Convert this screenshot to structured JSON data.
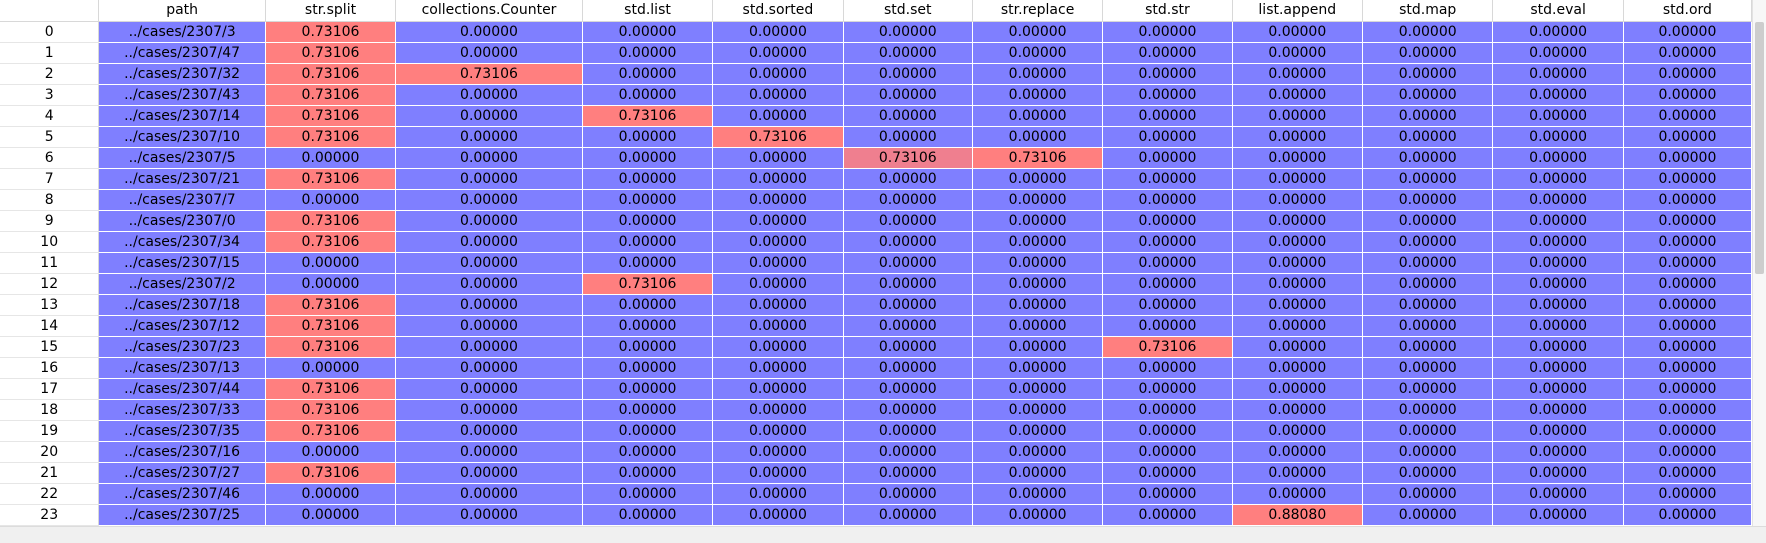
{
  "columns": [
    "",
    "path",
    "str.split",
    "collections.Counter",
    "std.list",
    "std.sorted",
    "std.set",
    "str.replace",
    "std.str",
    "list.append",
    "std.map",
    "std.eval",
    "std.ord"
  ],
  "rows": [
    {
      "index": "0",
      "path": "../cases/2307/3",
      "values": [
        "0.73106",
        "0.00000",
        "0.00000",
        "0.00000",
        "0.00000",
        "0.00000",
        "0.00000",
        "0.00000",
        "0.00000",
        "0.00000",
        "0.00000"
      ]
    },
    {
      "index": "1",
      "path": "../cases/2307/47",
      "values": [
        "0.73106",
        "0.00000",
        "0.00000",
        "0.00000",
        "0.00000",
        "0.00000",
        "0.00000",
        "0.00000",
        "0.00000",
        "0.00000",
        "0.00000"
      ]
    },
    {
      "index": "2",
      "path": "../cases/2307/32",
      "values": [
        "0.73106",
        "0.73106",
        "0.00000",
        "0.00000",
        "0.00000",
        "0.00000",
        "0.00000",
        "0.00000",
        "0.00000",
        "0.00000",
        "0.00000"
      ]
    },
    {
      "index": "3",
      "path": "../cases/2307/43",
      "values": [
        "0.73106",
        "0.00000",
        "0.00000",
        "0.00000",
        "0.00000",
        "0.00000",
        "0.00000",
        "0.00000",
        "0.00000",
        "0.00000",
        "0.00000"
      ]
    },
    {
      "index": "4",
      "path": "../cases/2307/14",
      "values": [
        "0.73106",
        "0.00000",
        "0.73106",
        "0.00000",
        "0.00000",
        "0.00000",
        "0.00000",
        "0.00000",
        "0.00000",
        "0.00000",
        "0.00000"
      ]
    },
    {
      "index": "5",
      "path": "../cases/2307/10",
      "values": [
        "0.73106",
        "0.00000",
        "0.00000",
        "0.73106",
        "0.00000",
        "0.00000",
        "0.00000",
        "0.00000",
        "0.00000",
        "0.00000",
        "0.00000"
      ]
    },
    {
      "index": "6",
      "path": "../cases/2307/5",
      "values": [
        "0.00000",
        "0.00000",
        "0.00000",
        "0.00000",
        "0.73106",
        "0.73106",
        "0.00000",
        "0.00000",
        "0.00000",
        "0.00000",
        "0.00000"
      ]
    },
    {
      "index": "7",
      "path": "../cases/2307/21",
      "values": [
        "0.73106",
        "0.00000",
        "0.00000",
        "0.00000",
        "0.00000",
        "0.00000",
        "0.00000",
        "0.00000",
        "0.00000",
        "0.00000",
        "0.00000"
      ]
    },
    {
      "index": "8",
      "path": "../cases/2307/7",
      "values": [
        "0.00000",
        "0.00000",
        "0.00000",
        "0.00000",
        "0.00000",
        "0.00000",
        "0.00000",
        "0.00000",
        "0.00000",
        "0.00000",
        "0.00000"
      ]
    },
    {
      "index": "9",
      "path": "../cases/2307/0",
      "values": [
        "0.73106",
        "0.00000",
        "0.00000",
        "0.00000",
        "0.00000",
        "0.00000",
        "0.00000",
        "0.00000",
        "0.00000",
        "0.00000",
        "0.00000"
      ]
    },
    {
      "index": "10",
      "path": "../cases/2307/34",
      "values": [
        "0.73106",
        "0.00000",
        "0.00000",
        "0.00000",
        "0.00000",
        "0.00000",
        "0.00000",
        "0.00000",
        "0.00000",
        "0.00000",
        "0.00000"
      ]
    },
    {
      "index": "11",
      "path": "../cases/2307/15",
      "values": [
        "0.00000",
        "0.00000",
        "0.00000",
        "0.00000",
        "0.00000",
        "0.00000",
        "0.00000",
        "0.00000",
        "0.00000",
        "0.00000",
        "0.00000"
      ]
    },
    {
      "index": "12",
      "path": "../cases/2307/2",
      "values": [
        "0.00000",
        "0.00000",
        "0.73106",
        "0.00000",
        "0.00000",
        "0.00000",
        "0.00000",
        "0.00000",
        "0.00000",
        "0.00000",
        "0.00000"
      ]
    },
    {
      "index": "13",
      "path": "../cases/2307/18",
      "values": [
        "0.73106",
        "0.00000",
        "0.00000",
        "0.00000",
        "0.00000",
        "0.00000",
        "0.00000",
        "0.00000",
        "0.00000",
        "0.00000",
        "0.00000"
      ]
    },
    {
      "index": "14",
      "path": "../cases/2307/12",
      "values": [
        "0.73106",
        "0.00000",
        "0.00000",
        "0.00000",
        "0.00000",
        "0.00000",
        "0.00000",
        "0.00000",
        "0.00000",
        "0.00000",
        "0.00000"
      ]
    },
    {
      "index": "15",
      "path": "../cases/2307/23",
      "values": [
        "0.73106",
        "0.00000",
        "0.00000",
        "0.00000",
        "0.00000",
        "0.00000",
        "0.73106",
        "0.00000",
        "0.00000",
        "0.00000",
        "0.00000"
      ]
    },
    {
      "index": "16",
      "path": "../cases/2307/13",
      "values": [
        "0.00000",
        "0.00000",
        "0.00000",
        "0.00000",
        "0.00000",
        "0.00000",
        "0.00000",
        "0.00000",
        "0.00000",
        "0.00000",
        "0.00000"
      ]
    },
    {
      "index": "17",
      "path": "../cases/2307/44",
      "values": [
        "0.73106",
        "0.00000",
        "0.00000",
        "0.00000",
        "0.00000",
        "0.00000",
        "0.00000",
        "0.00000",
        "0.00000",
        "0.00000",
        "0.00000"
      ]
    },
    {
      "index": "18",
      "path": "../cases/2307/33",
      "values": [
        "0.73106",
        "0.00000",
        "0.00000",
        "0.00000",
        "0.00000",
        "0.00000",
        "0.00000",
        "0.00000",
        "0.00000",
        "0.00000",
        "0.00000"
      ]
    },
    {
      "index": "19",
      "path": "../cases/2307/35",
      "values": [
        "0.73106",
        "0.00000",
        "0.00000",
        "0.00000",
        "0.00000",
        "0.00000",
        "0.00000",
        "0.00000",
        "0.00000",
        "0.00000",
        "0.00000"
      ]
    },
    {
      "index": "20",
      "path": "../cases/2307/16",
      "values": [
        "0.00000",
        "0.00000",
        "0.00000",
        "0.00000",
        "0.00000",
        "0.00000",
        "0.00000",
        "0.00000",
        "0.00000",
        "0.00000",
        "0.00000"
      ]
    },
    {
      "index": "21",
      "path": "../cases/2307/27",
      "values": [
        "0.73106",
        "0.00000",
        "0.00000",
        "0.00000",
        "0.00000",
        "0.00000",
        "0.00000",
        "0.00000",
        "0.00000",
        "0.00000",
        "0.00000"
      ]
    },
    {
      "index": "22",
      "path": "../cases/2307/46",
      "values": [
        "0.00000",
        "0.00000",
        "0.00000",
        "0.00000",
        "0.00000",
        "0.00000",
        "0.00000",
        "0.00000",
        "0.00000",
        "0.00000",
        "0.00000"
      ]
    },
    {
      "index": "23",
      "path": "../cases/2307/25",
      "values": [
        "0.00000",
        "0.00000",
        "0.00000",
        "0.00000",
        "0.00000",
        "0.00000",
        "0.00000",
        "0.88080",
        "0.00000",
        "0.00000",
        "0.00000"
      ]
    }
  ],
  "colors": {
    "low": "#7f7fff",
    "high": "#ff7f7f",
    "mid": "#ef7f8f"
  },
  "warm_cells": [
    [
      6,
      4
    ]
  ]
}
